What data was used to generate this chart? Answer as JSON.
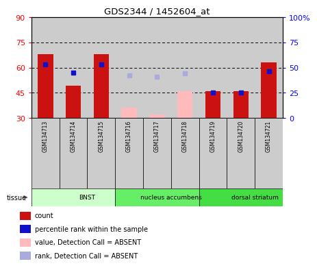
{
  "title": "GDS2344 / 1452604_at",
  "samples": [
    "GSM134713",
    "GSM134714",
    "GSM134715",
    "GSM134716",
    "GSM134717",
    "GSM134718",
    "GSM134719",
    "GSM134720",
    "GSM134721"
  ],
  "tissues": [
    {
      "name": "BNST",
      "start": 0,
      "end": 3,
      "color": "#ccffcc"
    },
    {
      "name": "nucleus accumbens",
      "start": 3,
      "end": 6,
      "color": "#66ee66"
    },
    {
      "name": "dorsal striatum",
      "start": 6,
      "end": 9,
      "color": "#44dd44"
    }
  ],
  "present_bars": [
    {
      "idx": 0,
      "value": 68,
      "rank": 53
    },
    {
      "idx": 1,
      "value": 49,
      "rank": 45
    },
    {
      "idx": 2,
      "value": 68,
      "rank": 53
    },
    {
      "idx": 6,
      "value": 46,
      "rank": 25
    },
    {
      "idx": 7,
      "value": 46,
      "rank": 25
    },
    {
      "idx": 8,
      "value": 63,
      "rank": 46
    }
  ],
  "absent_bars": [
    {
      "idx": 3,
      "value": 36,
      "rank": 42
    },
    {
      "idx": 4,
      "value": 32,
      "rank": 41
    },
    {
      "idx": 5,
      "value": 46,
      "rank": 44
    }
  ],
  "yleft_min": 30,
  "yleft_max": 90,
  "yright_min": 0,
  "yright_max": 100,
  "yticks_left": [
    30,
    45,
    60,
    75,
    90
  ],
  "yticks_right": [
    0,
    25,
    50,
    75,
    100
  ],
  "hlines": [
    45,
    60,
    75
  ],
  "bar_width": 0.55,
  "col_bg": "#cccccc",
  "bar_color_present": "#cc1111",
  "bar_color_absent": "#ffbbbb",
  "rank_color_present": "#1111cc",
  "rank_color_absent": "#aaaadd",
  "legend_items": [
    {
      "color": "#cc1111",
      "label": "count"
    },
    {
      "color": "#1111cc",
      "label": "percentile rank within the sample"
    },
    {
      "color": "#ffbbbb",
      "label": "value, Detection Call = ABSENT"
    },
    {
      "color": "#aaaadd",
      "label": "rank, Detection Call = ABSENT"
    }
  ]
}
